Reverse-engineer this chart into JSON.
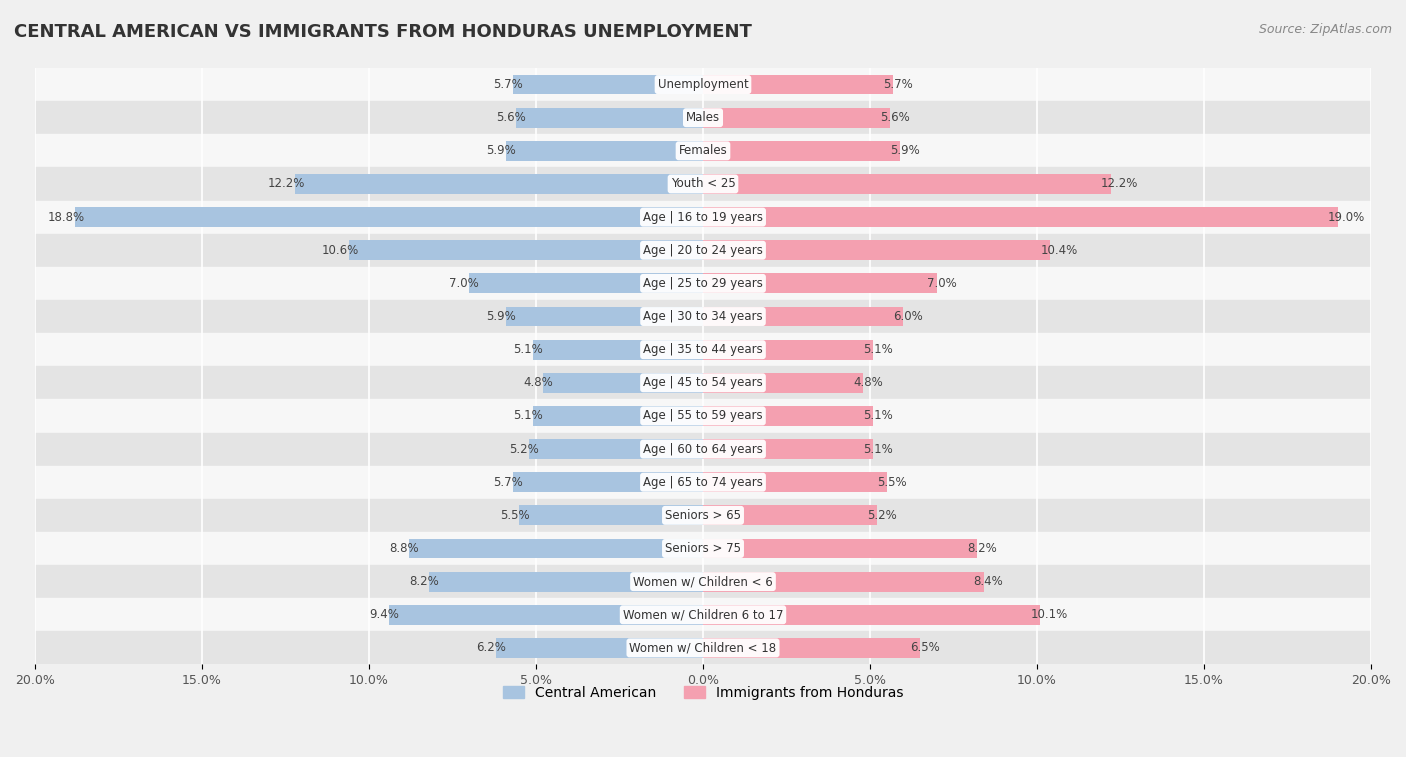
{
  "title": "CENTRAL AMERICAN VS IMMIGRANTS FROM HONDURAS UNEMPLOYMENT",
  "source": "Source: ZipAtlas.com",
  "categories": [
    "Unemployment",
    "Males",
    "Females",
    "Youth < 25",
    "Age | 16 to 19 years",
    "Age | 20 to 24 years",
    "Age | 25 to 29 years",
    "Age | 30 to 34 years",
    "Age | 35 to 44 years",
    "Age | 45 to 54 years",
    "Age | 55 to 59 years",
    "Age | 60 to 64 years",
    "Age | 65 to 74 years",
    "Seniors > 65",
    "Seniors > 75",
    "Women w/ Children < 6",
    "Women w/ Children 6 to 17",
    "Women w/ Children < 18"
  ],
  "central_american": [
    5.7,
    5.6,
    5.9,
    12.2,
    18.8,
    10.6,
    7.0,
    5.9,
    5.1,
    4.8,
    5.1,
    5.2,
    5.7,
    5.5,
    8.8,
    8.2,
    9.4,
    6.2
  ],
  "immigrants_honduras": [
    5.7,
    5.6,
    5.9,
    12.2,
    19.0,
    10.4,
    7.0,
    6.0,
    5.1,
    4.8,
    5.1,
    5.1,
    5.5,
    5.2,
    8.2,
    8.4,
    10.1,
    6.5
  ],
  "color_central": "#a8c4e0",
  "color_honduras": "#f4a0b0",
  "x_max": 20.0,
  "background_color": "#f0f0f0",
  "row_bg_light": "#f7f7f7",
  "row_bg_dark": "#e4e4e4",
  "bar_height": 0.6
}
